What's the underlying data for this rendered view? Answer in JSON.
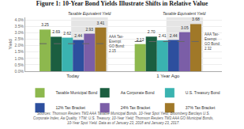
{
  "chart_data": {
    "type": "bar",
    "title": "Figure 1: 10-Year Bond Yields Illustrate Shifts in Relative Value",
    "categories": [
      "Today",
      "1 Year Ago"
    ],
    "series": [
      {
        "name": "Taxable Municipal Bond",
        "color": "#8db84e",
        "values": [
          3.25,
          2.12
        ],
        "value_labels": [
          "3.25",
          "2.12"
        ]
      },
      {
        "name": "Aa Corporate Bond",
        "color": "#1b5e40",
        "values": [
          2.69,
          2.7
        ],
        "value_labels": [
          "2.69",
          "2.70"
        ]
      },
      {
        "name": "U.S. Treasury Bond",
        "color": "#3ab3b0",
        "values": [
          2.62,
          2.41
        ],
        "value_labels": [
          "2.62",
          "2.41"
        ]
      },
      {
        "name": "12% Tax Bracket",
        "color": "#2d4f9e",
        "values": [
          2.44,
          2.44
        ],
        "value_labels": [
          "2.44",
          "2.44"
        ]
      },
      {
        "name": "24% Tax Bracket",
        "color": "#7b5ea7",
        "values": [
          2.93,
          3.05
        ],
        "value_labels": [
          "2.93",
          "3.05"
        ]
      },
      {
        "name": "37% Tax Bracket",
        "color": "#a07828",
        "values": [
          3.41,
          3.68
        ],
        "value_labels": [
          "3.41",
          "3.68"
        ]
      }
    ],
    "ylabel": "Yield",
    "ylim": [
      0,
      4.2
    ],
    "yticks": [
      {
        "value": 0,
        "label": "0.0%"
      },
      {
        "value": 0.5,
        "label": "0.5%"
      },
      {
        "value": 1,
        "label": "1.0%"
      },
      {
        "value": 1.5,
        "label": "1.5%"
      },
      {
        "value": 2,
        "label": "2.0%"
      },
      {
        "value": 2.5,
        "label": "2.5%"
      },
      {
        "value": 3,
        "label": "3.0%"
      },
      {
        "value": 3.5,
        "label": "3.5%"
      },
      {
        "value": 4,
        "label": "4.0%"
      }
    ],
    "grid": true,
    "legend": "bottom",
    "data_labels": true,
    "reference_lines": [
      {
        "category": "Today",
        "value": 2.15,
        "label": "AAA Tax-\nExempt\nGO Bond:\n2.15"
      },
      {
        "category": "1 Year Ago",
        "value": 2.32,
        "label": "AAA Tax-\nExempt\nGO Bond:\n2.32"
      }
    ],
    "annotations": [
      {
        "text": "Taxable Equivalent Yield",
        "category": "Today",
        "series": [
          "12% Tax Bracket",
          "24% Tax Bracket",
          "37% Tax Bracket"
        ]
      },
      {
        "text": "Taxable Equivalent Yield",
        "category": "1 Year Ago",
        "series": [
          "12% Tax Bracket",
          "24% Tax Bracket",
          "37% Tax Bracket"
        ]
      }
    ],
    "source": "Sources: Thomson Reuters TM3 AAA Taxable Municipal Bonds, 10-Year Spot Yield; Bloomberg Barclays U.S.\nCorporate Index, Aa Quality, YTW; U.S. Treasury, 10-Year Yield; Thomson Reuters TM3 AAA GO Municipal Bonds,\n10-Year Spot Yield. Data as of January 23, 2018 and January 23, 2017."
  }
}
